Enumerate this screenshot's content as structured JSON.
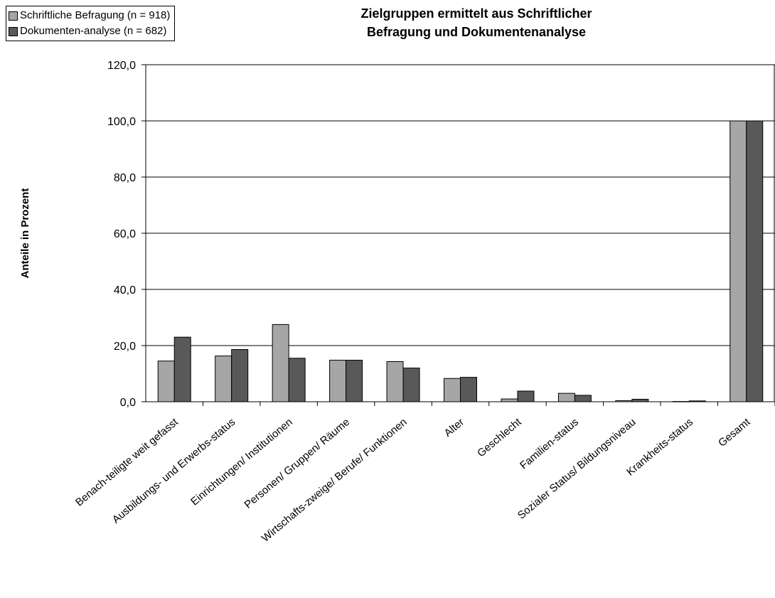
{
  "chart_data": {
    "type": "bar",
    "title_line1": "Zielgruppen ermittelt aus Schriftlicher",
    "title_line2": "Befragung und Dokumentenanalyse",
    "ylabel": "Anteile in Prozent",
    "xlabel": "",
    "ylim": [
      0,
      120
    ],
    "yticks": [
      "0,0",
      "20,0",
      "40,0",
      "60,0",
      "80,0",
      "100,0",
      "120,0"
    ],
    "grid": true,
    "legend_position": "top-left",
    "categories": [
      "Benach-teiligte weit gefasst",
      "Ausbildungs- und Erwerbs-status",
      "Einrichtungen/ Institutionen",
      "Personen/ Gruppen/ Räume",
      "Wirtschafts-zweige/ Berufe/ Funktionen",
      "Alter",
      "Geschlecht",
      "Familien-status",
      "Sozialer Status/ Bildungsniveau",
      "Krankheits-status",
      "Gesamt"
    ],
    "series": [
      {
        "name": "Schriftliche Befragung (n = 918)",
        "color": "#a6a6a6",
        "values": [
          14.5,
          16.3,
          27.5,
          14.8,
          14.3,
          8.3,
          1.0,
          3.0,
          0.4,
          0.1,
          100.0
        ]
      },
      {
        "name": "Dokumenten-analyse (n = 682)",
        "color": "#595959",
        "values": [
          23.0,
          18.6,
          15.5,
          14.8,
          12.0,
          8.7,
          3.8,
          2.3,
          0.9,
          0.3,
          100.0
        ]
      }
    ]
  }
}
